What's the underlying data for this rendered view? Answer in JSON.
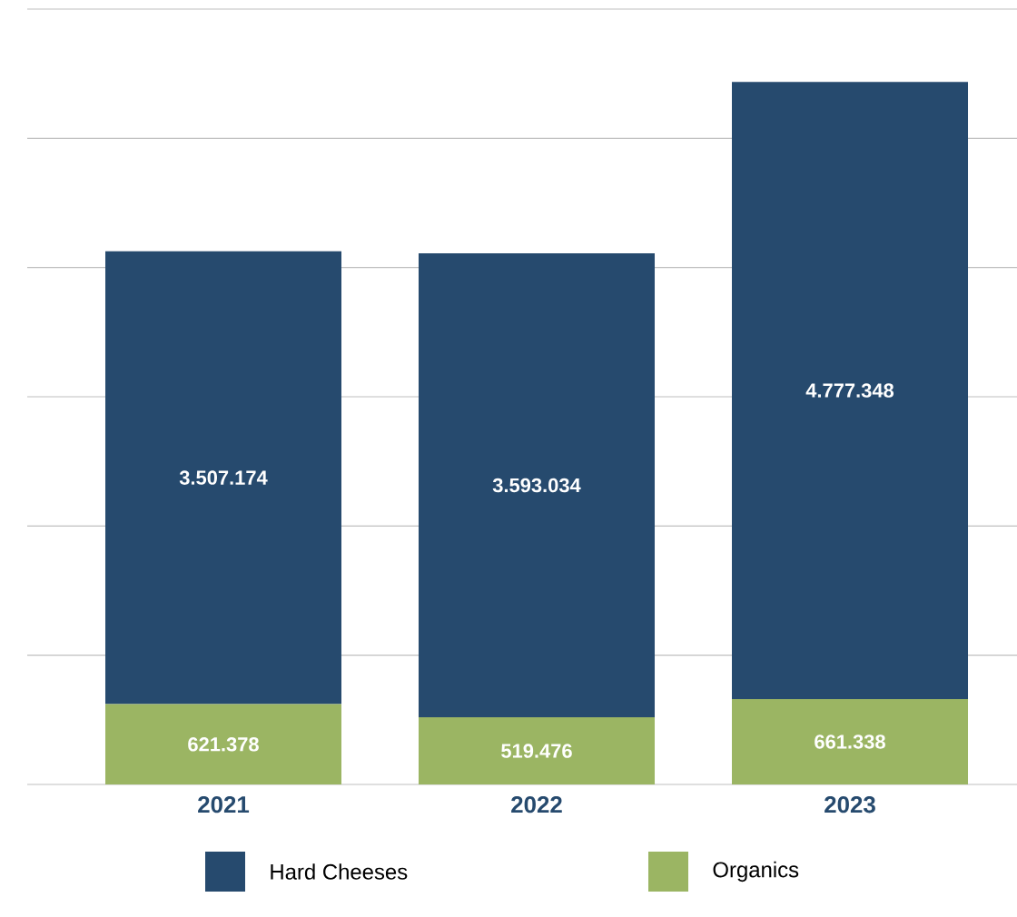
{
  "chart_data": {
    "type": "bar",
    "stacked": true,
    "categories": [
      "2021",
      "2022",
      "2023"
    ],
    "series": [
      {
        "name": "Organics",
        "color": "#9bb563",
        "values": [
          621378,
          519476,
          661338
        ],
        "value_labels": [
          "621.378",
          "519.476",
          "661.338"
        ]
      },
      {
        "name": "Hard Cheeses",
        "color": "#264a6e",
        "values": [
          3507174,
          3593034,
          4777348
        ],
        "value_labels": [
          "3.507.174",
          "3.593.034",
          "4.777.348"
        ]
      }
    ],
    "grid": "y",
    "tick_labels": "x",
    "legend": "bottom"
  }
}
